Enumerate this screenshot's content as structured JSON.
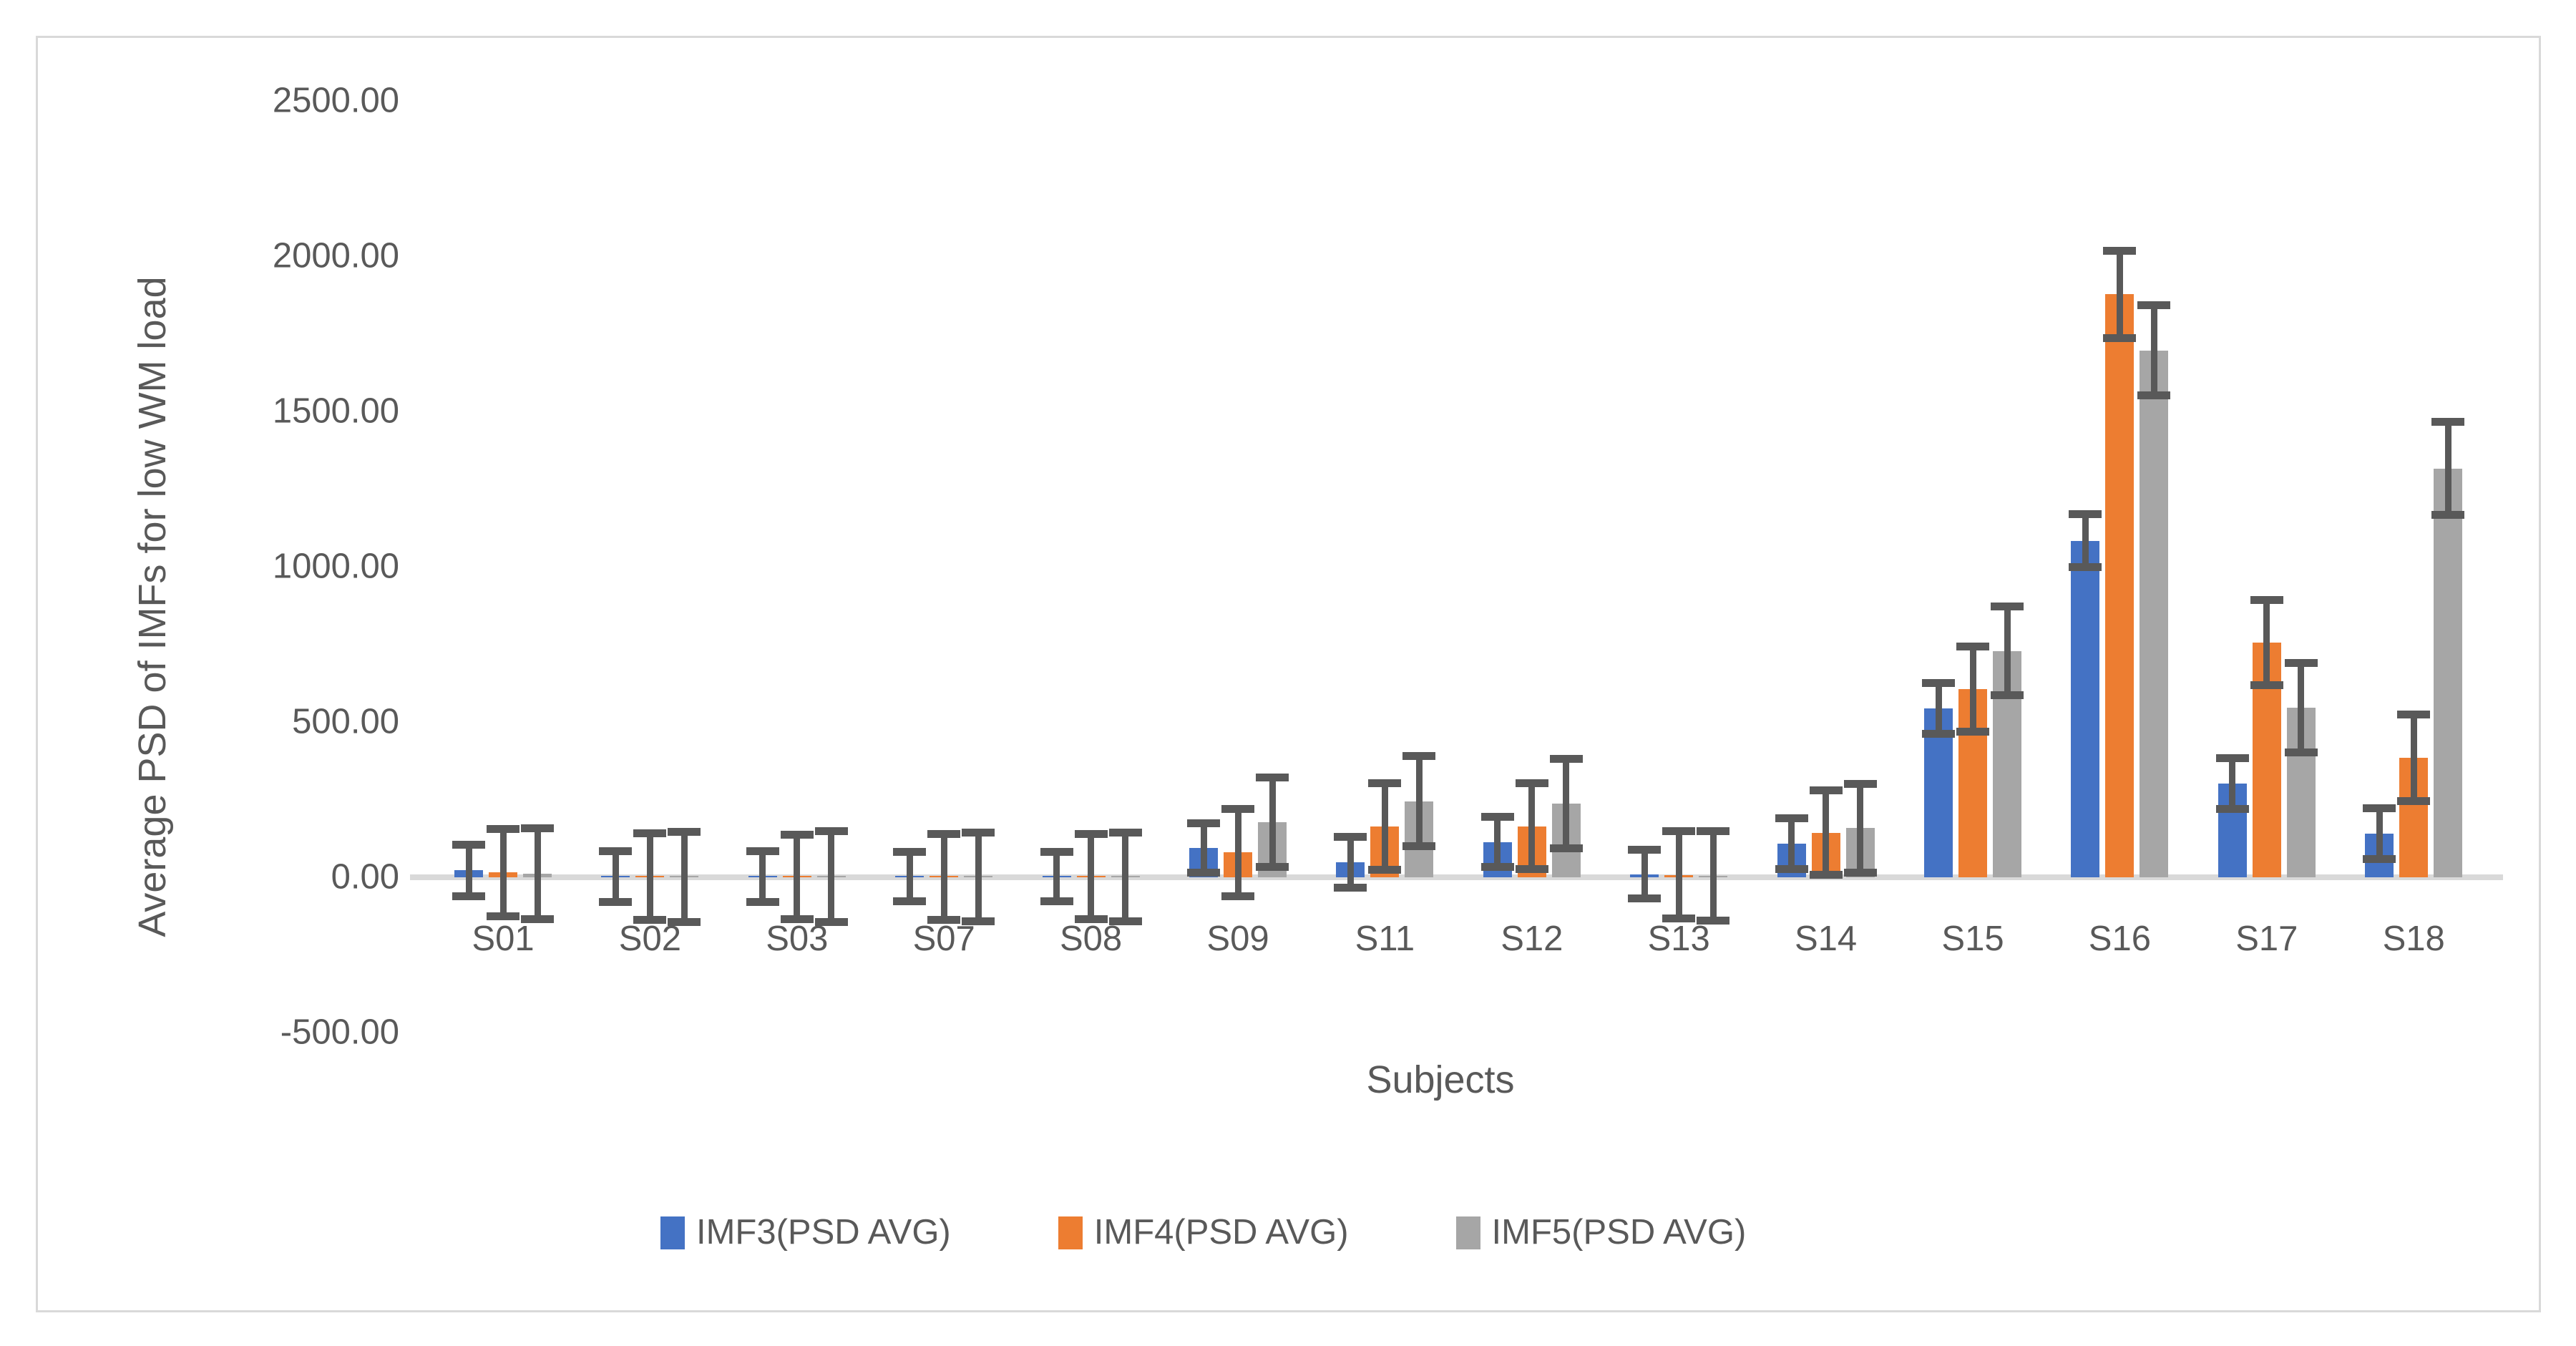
{
  "chart_data": {
    "type": "bar",
    "title": "",
    "xlabel": "Subjects",
    "ylabel": "Average PSD of IMFs for low WM load",
    "categories": [
      "S01",
      "S02",
      "S03",
      "S07",
      "S08",
      "S09",
      "S11",
      "S12",
      "S13",
      "S14",
      "S15",
      "S16",
      "S17",
      "S18"
    ],
    "series": [
      {
        "name": "IMF3(PSD AVG)",
        "color": "#4472c4",
        "values": [
          22,
          3,
          2,
          2,
          2,
          94,
          49,
          114,
          10,
          108,
          543,
          1083,
          302,
          141
        ],
        "errors": [
          82,
          82,
          81,
          80,
          80,
          80,
          82,
          80,
          78,
          81,
          82,
          85,
          82,
          82
        ]
      },
      {
        "name": "IMF4(PSD AVG)",
        "color": "#ed7d31",
        "values": [
          15,
          3,
          2,
          1,
          2,
          80,
          164,
          164,
          8,
          143,
          606,
          1876,
          755,
          385
        ],
        "errors": [
          140,
          139,
          136,
          138,
          137,
          140,
          139,
          138,
          140,
          136,
          137,
          140,
          137,
          139
        ]
      },
      {
        "name": "IMF5(PSD AVG)",
        "color": "#a6a6a6",
        "values": [
          12,
          2,
          2,
          1,
          1,
          178,
          245,
          237,
          5,
          158,
          728,
          1696,
          545,
          1316
        ],
        "errors": [
          146,
          145,
          147,
          143,
          142,
          144,
          145,
          144,
          144,
          142,
          143,
          145,
          144,
          150
        ]
      }
    ],
    "y_ticks": [
      {
        "label": "2500.00",
        "value": 2500
      },
      {
        "label": "2000.00",
        "value": 2000
      },
      {
        "label": "1500.00",
        "value": 1500
      },
      {
        "label": "1000.00",
        "value": 1000
      },
      {
        "label": "500.00",
        "value": 500
      },
      {
        "label": "0.00",
        "value": 0
      },
      {
        "label": "-500.00",
        "value": -500
      }
    ],
    "ylim": [
      -500,
      2500
    ],
    "grid": false,
    "legend_position": "bottom",
    "error_bar_color": "#595959",
    "baseline_color": "#d9d9d9",
    "frame_border_color": "#d9d9d9",
    "text_color": "#595959"
  }
}
